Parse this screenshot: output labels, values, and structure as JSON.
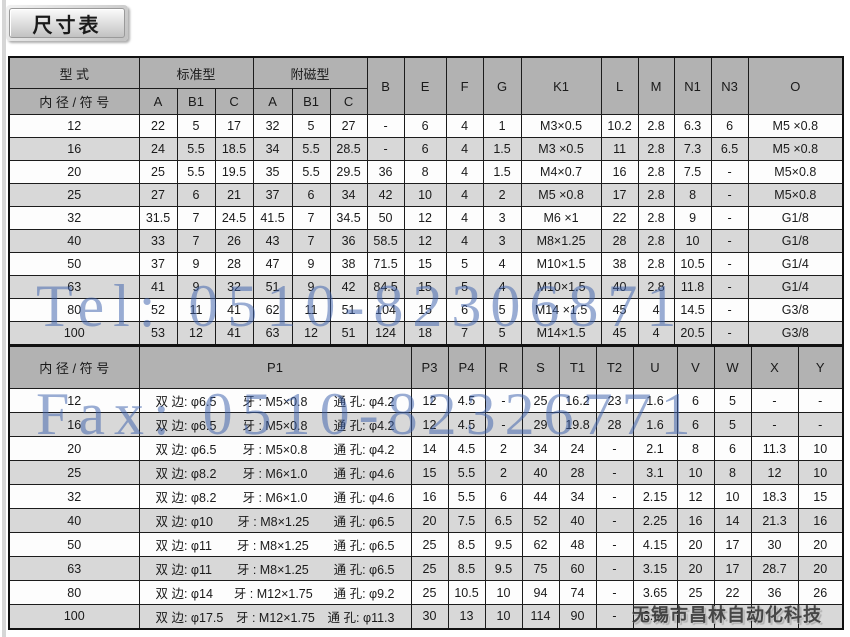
{
  "page": {
    "title": "尺寸表"
  },
  "watermarks": {
    "tel": "Tel: 0510-82306871",
    "fax": "Fax: 0510-82326771",
    "company": "无锡市昌林自动化科技",
    "blue_color": "#3e62ac"
  },
  "colors": {
    "header_gray": "#b2b2b2",
    "stripe_gray": "#d8d8d8",
    "border": "#1c1c1c"
  },
  "table1": {
    "header": {
      "model": "型 式",
      "bore_label": "内 径 / 符 号",
      "standard": "标准型",
      "magnet": "附磁型",
      "sub": [
        "A",
        "B1",
        "C"
      ],
      "cols": [
        "B",
        "E",
        "F",
        "G",
        "K1",
        "L",
        "M",
        "N1",
        "N3",
        "O"
      ]
    },
    "rows": [
      {
        "bore": "12",
        "std": [
          "22",
          "5",
          "17"
        ],
        "mag": [
          "32",
          "5",
          "27"
        ],
        "vals": [
          "-",
          "6",
          "4",
          "1",
          "M3×0.5",
          "10.2",
          "2.8",
          "6.3",
          "6",
          "M5 ×0.8"
        ]
      },
      {
        "bore": "16",
        "std": [
          "24",
          "5.5",
          "18.5"
        ],
        "mag": [
          "34",
          "5.5",
          "28.5"
        ],
        "vals": [
          "-",
          "6",
          "4",
          "1.5",
          "M3 ×0.5",
          "11",
          "2.8",
          "7.3",
          "6.5",
          "M5 ×0.8"
        ]
      },
      {
        "bore": "20",
        "std": [
          "25",
          "5.5",
          "19.5"
        ],
        "mag": [
          "35",
          "5.5",
          "29.5"
        ],
        "vals": [
          "36",
          "8",
          "4",
          "1.5",
          "M4×0.7",
          "16",
          "2.8",
          "7.5",
          "-",
          "M5×0.8"
        ]
      },
      {
        "bore": "25",
        "std": [
          "27",
          "6",
          "21"
        ],
        "mag": [
          "37",
          "6",
          "34"
        ],
        "vals": [
          "42",
          "10",
          "4",
          "2",
          "M5 ×0.8",
          "17",
          "2.8",
          "8",
          "-",
          "M5×0.8"
        ]
      },
      {
        "bore": "32",
        "std": [
          "31.5",
          "7",
          "24.5"
        ],
        "mag": [
          "41.5",
          "7",
          "34.5"
        ],
        "vals": [
          "50",
          "12",
          "4",
          "3",
          "M6 ×1",
          "22",
          "2.8",
          "9",
          "-",
          "G1/8"
        ]
      },
      {
        "bore": "40",
        "std": [
          "33",
          "7",
          "26"
        ],
        "mag": [
          "43",
          "7",
          "36"
        ],
        "vals": [
          "58.5",
          "12",
          "4",
          "3",
          "M8×1.25",
          "28",
          "2.8",
          "10",
          "-",
          "G1/8"
        ]
      },
      {
        "bore": "50",
        "std": [
          "37",
          "9",
          "28"
        ],
        "mag": [
          "47",
          "9",
          "38"
        ],
        "vals": [
          "71.5",
          "15",
          "5",
          "4",
          "M10×1.5",
          "38",
          "2.8",
          "10.5",
          "-",
          "G1/4"
        ]
      },
      {
        "bore": "63",
        "std": [
          "41",
          "9",
          "32"
        ],
        "mag": [
          "51",
          "9",
          "42"
        ],
        "vals": [
          "84.5",
          "15",
          "5",
          "4",
          "M10×1.5",
          "40",
          "2.8",
          "11.8",
          "-",
          "G1/4"
        ]
      },
      {
        "bore": "80",
        "std": [
          "52",
          "11",
          "41"
        ],
        "mag": [
          "62",
          "11",
          "51"
        ],
        "vals": [
          "104",
          "15",
          "6",
          "5",
          "M14 ×1.5",
          "45",
          "4",
          "14.5",
          "-",
          "G3/8"
        ]
      },
      {
        "bore": "100",
        "std": [
          "53",
          "12",
          "41"
        ],
        "mag": [
          "63",
          "12",
          "51"
        ],
        "vals": [
          "124",
          "18",
          "7",
          "5",
          "M14×1.5",
          "45",
          "4",
          "20.5",
          "-",
          "G3/8"
        ]
      }
    ]
  },
  "table2": {
    "header": {
      "bore_label": "内 径 / 符 号",
      "p1_label": "P1",
      "cols": [
        "P3",
        "P4",
        "R",
        "S",
        "T1",
        "T2",
        "U",
        "V",
        "W",
        "X",
        "Y"
      ]
    },
    "rows": [
      {
        "bore": "12",
        "p1": [
          "双 边: φ6.5",
          "牙 : M5×0.8",
          "通 孔: φ4.2"
        ],
        "vals": [
          "12",
          "4.5",
          "-",
          "25",
          "16.2",
          "23",
          "1.6",
          "6",
          "5",
          "-",
          "-"
        ]
      },
      {
        "bore": "16",
        "p1": [
          "双 边: φ6.5",
          "牙 : M5×0.8",
          "通 孔: φ4.2"
        ],
        "vals": [
          "12",
          "4.5",
          "-",
          "29",
          "19.8",
          "28",
          "1.6",
          "6",
          "5",
          "-",
          "-"
        ]
      },
      {
        "bore": "20",
        "p1": [
          "双 边: φ6.5",
          "牙 : M5×0.8",
          "通 孔: φ4.2"
        ],
        "vals": [
          "14",
          "4.5",
          "2",
          "34",
          "24",
          "-",
          "2.1",
          "8",
          "6",
          "11.3",
          "10"
        ]
      },
      {
        "bore": "25",
        "p1": [
          "双 边: φ8.2",
          "牙 : M6×1.0",
          "通 孔: φ4.6"
        ],
        "vals": [
          "15",
          "5.5",
          "2",
          "40",
          "28",
          "-",
          "3.1",
          "10",
          "8",
          "12",
          "10"
        ]
      },
      {
        "bore": "32",
        "p1": [
          "双 边: φ8.2",
          "牙 : M6×1.0",
          "通 孔: φ4.6"
        ],
        "vals": [
          "16",
          "5.5",
          "6",
          "44",
          "34",
          "-",
          "2.15",
          "12",
          "10",
          "18.3",
          "15"
        ]
      },
      {
        "bore": "40",
        "p1": [
          "双 边: φ10",
          "牙 : M8×1.25",
          "通 孔: φ6.5"
        ],
        "vals": [
          "20",
          "7.5",
          "6.5",
          "52",
          "40",
          "-",
          "2.25",
          "16",
          "14",
          "21.3",
          "16"
        ]
      },
      {
        "bore": "50",
        "p1": [
          "双 边: φ11",
          "牙 : M8×1.25",
          "通 孔: φ6.5"
        ],
        "vals": [
          "25",
          "8.5",
          "9.5",
          "62",
          "48",
          "-",
          "4.15",
          "20",
          "17",
          "30",
          "20"
        ]
      },
      {
        "bore": "63",
        "p1": [
          "双 边: φ11",
          "牙 : M8×1.25",
          "通 孔: φ6.5"
        ],
        "vals": [
          "25",
          "8.5",
          "9.5",
          "75",
          "60",
          "-",
          "3.15",
          "20",
          "17",
          "28.7",
          "20"
        ]
      },
      {
        "bore": "80",
        "p1": [
          "双 边: φ14",
          "牙 : M12×1.75",
          "通 孔: φ9.2"
        ],
        "vals": [
          "25",
          "10.5",
          "10",
          "94",
          "74",
          "-",
          "3.65",
          "25",
          "22",
          "36",
          "26"
        ]
      },
      {
        "bore": "100",
        "p1": [
          "双 边: φ17.5",
          "牙 : M12×1.75",
          "通 孔: φ11.3"
        ],
        "vals": [
          "30",
          "13",
          "10",
          "114",
          "90",
          "-",
          "3.65",
          "",
          "",
          "",
          ""
        ]
      }
    ]
  }
}
